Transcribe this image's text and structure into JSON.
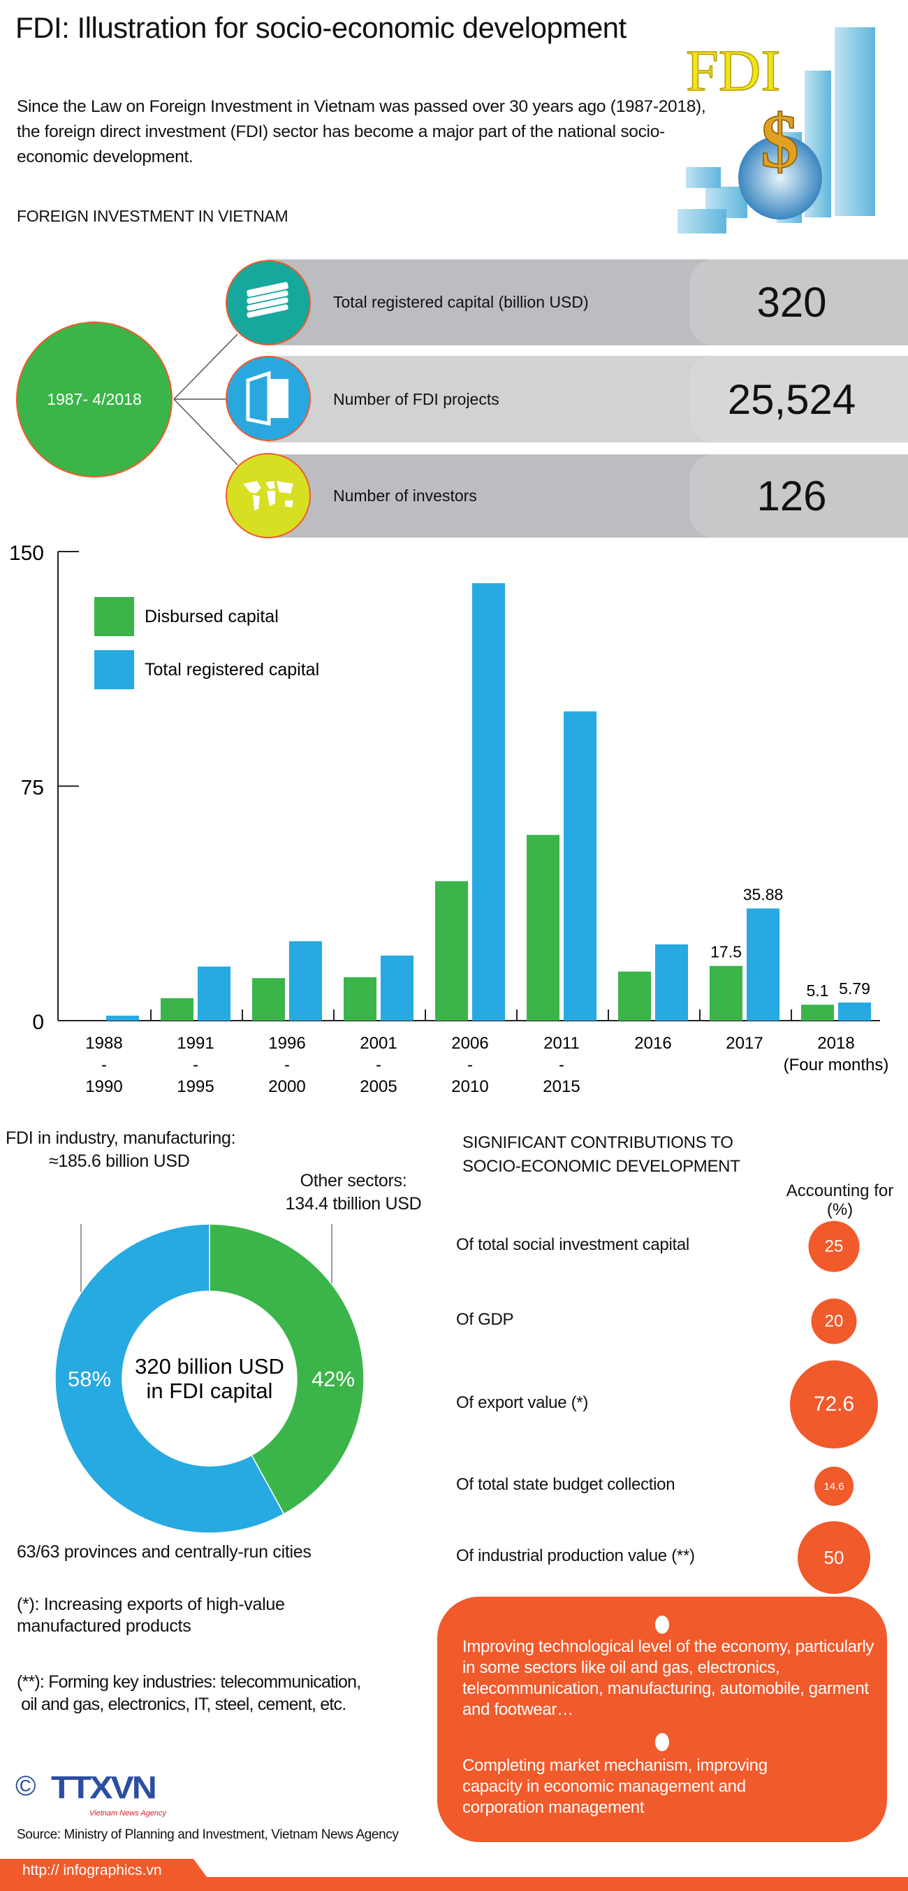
{
  "header": {
    "title": "FDI: Illustration for socio-economic development",
    "intro": "Since the Law on Foreign Investment in Vietnam was passed over 30 years ago (1987-2018), the foreign direct investment (FDI) sector has become a major part of the national socio-economic development.",
    "image_text": "FDI",
    "image_symbol": "$"
  },
  "foreign_investment": {
    "heading": "FOREIGN INVESTMENT IN VIETNAM",
    "period": "1987- 4/2018",
    "stats": [
      {
        "label": "Total registered capital (billion USD)",
        "value": "320",
        "icon": "money-stack-icon",
        "color": "#16a89c"
      },
      {
        "label": "Number of FDI projects",
        "value": "25,524",
        "icon": "document-icon",
        "color": "#29a8e0"
      },
      {
        "label": "Number of investors",
        "value": "126",
        "icon": "world-map-icon",
        "color": "#d7df23"
      }
    ]
  },
  "chart_data": [
    {
      "type": "bar",
      "categories": [
        [
          "1988",
          "-",
          "1990"
        ],
        [
          "1991",
          "-",
          "1995"
        ],
        [
          "1996",
          "-",
          "2000"
        ],
        [
          "2001",
          "-",
          "2005"
        ],
        [
          "2006",
          "-",
          "2010"
        ],
        [
          "2011",
          "-",
          "2015"
        ],
        [
          "2016"
        ],
        [
          "2017"
        ],
        [
          "2018",
          "(Four months)"
        ]
      ],
      "series": [
        {
          "name": "Disbursed capital",
          "color": "#3bb54a",
          "values": [
            0,
            7.2,
            13.6,
            13.9,
            44.6,
            59.4,
            15.7,
            17.5,
            5.1
          ]
        },
        {
          "name": "Total registered capital",
          "color": "#27a9e1",
          "values": [
            1.6,
            17.3,
            25.4,
            20.8,
            139.9,
            98.9,
            24.4,
            35.88,
            5.79
          ]
        }
      ],
      "data_labels": [
        {
          "category_index": 7,
          "series_index": 0,
          "text": "17.5"
        },
        {
          "category_index": 7,
          "series_index": 1,
          "text": "35.88"
        },
        {
          "category_index": 8,
          "series_index": 0,
          "text": "5.1"
        },
        {
          "category_index": 8,
          "series_index": 1,
          "text": "5.79"
        }
      ],
      "yticks": [
        "0",
        "75",
        "150"
      ],
      "ylim": [
        0,
        150
      ],
      "legend": "top-left",
      "grid": false
    },
    {
      "type": "pie",
      "donut": true,
      "center_label": [
        "320 billion USD",
        "in FDI capital"
      ],
      "slices": [
        {
          "label": "FDI in industry, manufacturing:",
          "value_text": "≈185.6 billion USD",
          "percent": 58,
          "pct_text": "58%",
          "color": "#27a9e1"
        },
        {
          "label": "Other sectors:",
          "value_text": "134.4 tbillion USD",
          "percent": 42,
          "pct_text": "42%",
          "color": "#3bb54a"
        }
      ]
    }
  ],
  "provinces_note": "63/63 provinces and centrally-run cities",
  "footnotes": [
    [
      "(*): Increasing exports of high-value",
      "manufactured products"
    ],
    [
      "(**): Forming key industries: telecommunication,",
      " oil and gas, electronics, IT, steel, cement, etc."
    ]
  ],
  "contributions": {
    "heading": [
      "SIGNIFICANT CONTRIBUTIONS TO",
      "SOCIO-ECONOMIC DEVELOPMENT"
    ],
    "column_header": [
      "Accounting for",
      "(%)"
    ],
    "color": "#f15a2b",
    "items": [
      {
        "label": "Of total social investment capital",
        "value": "25"
      },
      {
        "label": "Of  GDP",
        "value": "20"
      },
      {
        "label": "Of export value (*)",
        "value": "72.6"
      },
      {
        "label": "Of total state budget collection",
        "value": "14.6"
      },
      {
        "label": "Of industrial production value (**)",
        "value": "50"
      }
    ],
    "bullets": [
      "Improving technological level of the economy, particularly in some sectors like oil and gas, electronics, telecommunication, manufacturing, automobile, garment and footwear…",
      "Completing market mechanism, improving capacity in economic management and corporation management"
    ]
  },
  "logo": {
    "copyright": "©",
    "name": "TTXVN",
    "tagline": "Vietnam News Agency"
  },
  "source": "Source: Ministry of Planning and Investment, Vietnam News Agency",
  "footer": {
    "url": "http:// infographics.vn",
    "color": "#f15a2b"
  }
}
